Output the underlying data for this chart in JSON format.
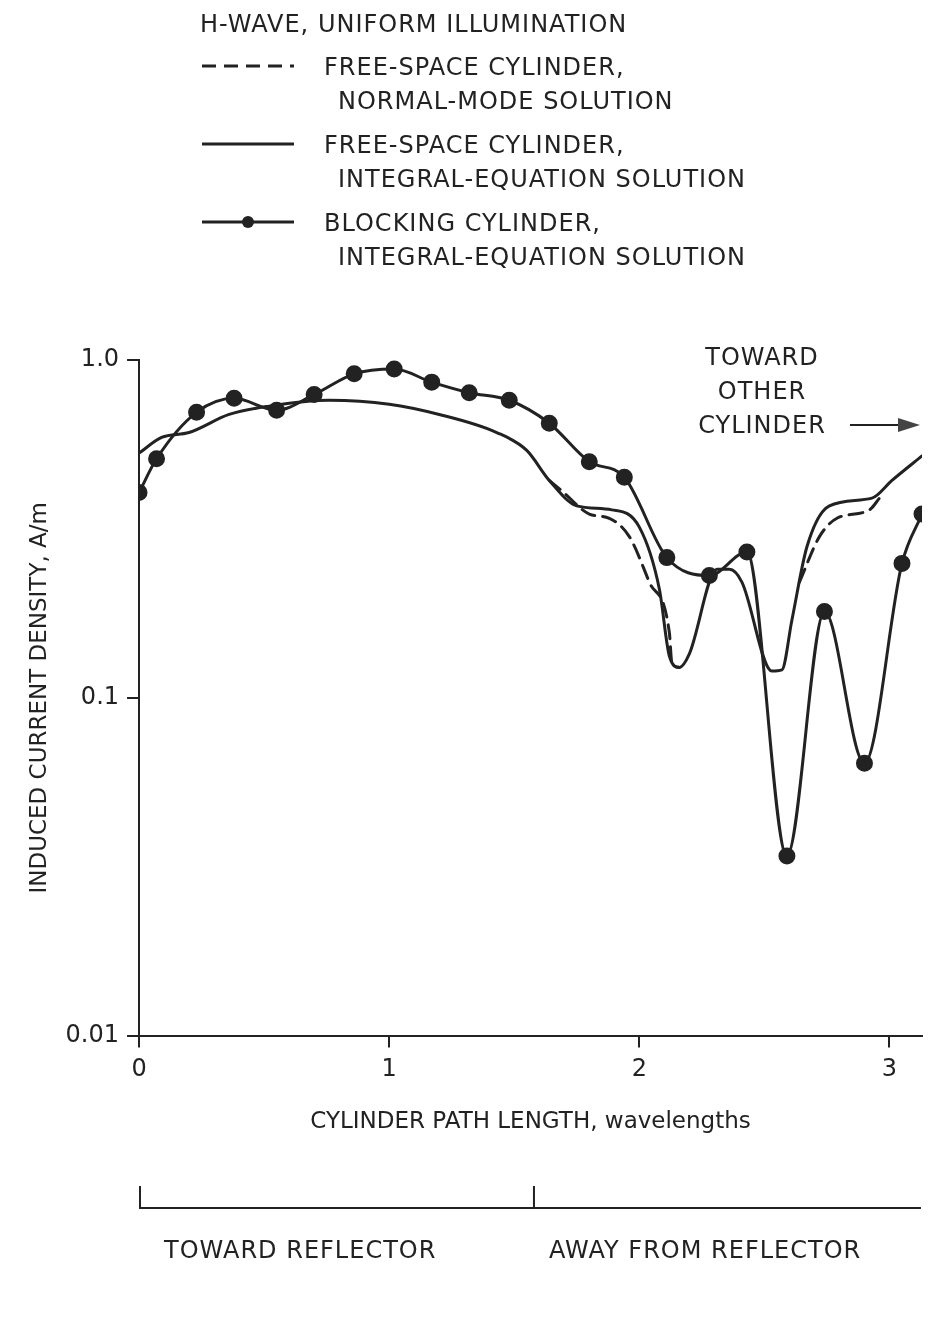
{
  "chart_data": {
    "type": "line",
    "legend_title": "H-WAVE, UNIFORM ILLUMINATION",
    "xlabel": "CYLINDER PATH LENGTH, wavelengths",
    "ylabel": "INDUCED CURRENT DENSITY, A/m",
    "annotations": [
      "TOWARD OTHER CYLINDER",
      "TOWARD REFLECTOR",
      "AWAY FROM REFLECTOR"
    ],
    "log": "y",
    "grid": false,
    "legend": "top",
    "xlim": [
      0,
      3.13
    ],
    "xticks": [
      0,
      1,
      2,
      3
    ],
    "ylim": [
      0.01,
      1.0
    ],
    "yticks": [
      {
        "value": 0.01,
        "label": "0.01"
      },
      {
        "value": 0.1,
        "label": "0.1"
      },
      {
        "value": 1.0,
        "label": "1.0"
      }
    ],
    "series": [
      {
        "name": "FREE-SPACE CYLINDER, NORMAL-MODE SOLUTION",
        "color": "#222222",
        "line_style": "dashed",
        "marker": "none",
        "x": [
          1.64,
          1.69,
          1.8,
          1.88,
          1.96,
          2.04,
          2.12,
          2.13,
          2.16,
          2.57,
          2.64,
          2.72,
          2.79,
          2.92,
          2.96
        ],
        "values": [
          0.44,
          0.41,
          0.35,
          0.34,
          0.3,
          0.22,
          0.156,
          0.127,
          0.123,
          null,
          0.22,
          0.3,
          0.34,
          0.36,
          0.39
        ]
      },
      {
        "name": "FREE-SPACE CYLINDER, INTEGRAL-EQUATION SOLUTION",
        "color": "#222222",
        "line_style": "solid",
        "marker": "none",
        "x": [
          0,
          0.09,
          0.2,
          0.36,
          0.52,
          0.76,
          1.0,
          1.2,
          1.43,
          1.55,
          1.64,
          1.75,
          1.89,
          2.0,
          2.08,
          2.12,
          2.16,
          2.2,
          2.31,
          2.36,
          2.41,
          2.53,
          2.57,
          2.61,
          2.67,
          2.76,
          2.93,
          3.01,
          3.13
        ],
        "values": [
          0.53,
          0.59,
          0.61,
          0.69,
          0.73,
          0.76,
          0.74,
          0.69,
          0.61,
          0.54,
          0.44,
          0.37,
          0.36,
          0.32,
          0.21,
          0.133,
          0.123,
          0.135,
          0.24,
          0.24,
          0.22,
          0.12,
          0.121,
          0.17,
          0.28,
          0.37,
          0.39,
          0.44,
          0.52
        ]
      },
      {
        "name": "BLOCKING CYLINDER, INTEGRAL-EQUATION SOLUTION",
        "color": "#222222",
        "line_style": "solid",
        "marker": "circle",
        "x": [
          0,
          0.07,
          0.23,
          0.38,
          0.55,
          0.7,
          0.86,
          1.02,
          1.17,
          1.32,
          1.48,
          1.64,
          1.8,
          1.94,
          2.11,
          2.28,
          2.43,
          2.59,
          2.74,
          2.9,
          3.05,
          3.13
        ],
        "values": [
          0.405,
          0.51,
          0.7,
          0.77,
          0.71,
          0.79,
          0.91,
          0.94,
          0.86,
          0.8,
          0.76,
          0.65,
          0.5,
          0.45,
          0.26,
          0.23,
          0.27,
          0.034,
          0.18,
          0.064,
          0.25,
          0.35
        ]
      }
    ]
  }
}
